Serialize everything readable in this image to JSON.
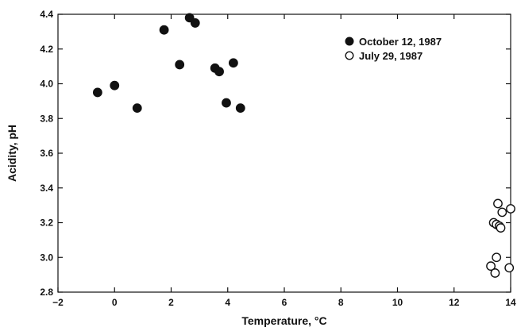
{
  "chart_data": {
    "type": "scatter",
    "xlabel": "Temperature, °C",
    "ylabel": "Acidity, pH",
    "xlim": [
      -2,
      14
    ],
    "ylim": [
      2.8,
      4.4
    ],
    "xticks": [
      "−2",
      "0",
      "2",
      "4",
      "6",
      "8",
      "10",
      "12",
      "14"
    ],
    "yticks": [
      "2.8",
      "3.0",
      "3.2",
      "3.4",
      "3.6",
      "3.8",
      "4.0",
      "4.2",
      "4.4"
    ],
    "grid": false,
    "legend_position": "top-right",
    "series": [
      {
        "name": "October 12, 1987",
        "marker": "filled-circle",
        "color": "#111111",
        "points": [
          {
            "x": -0.6,
            "y": 3.95
          },
          {
            "x": 0.0,
            "y": 3.99
          },
          {
            "x": 0.8,
            "y": 3.86
          },
          {
            "x": 1.75,
            "y": 4.31
          },
          {
            "x": 2.3,
            "y": 4.11
          },
          {
            "x": 2.65,
            "y": 4.38
          },
          {
            "x": 2.85,
            "y": 4.35
          },
          {
            "x": 3.55,
            "y": 4.09
          },
          {
            "x": 3.7,
            "y": 4.07
          },
          {
            "x": 3.95,
            "y": 3.89
          },
          {
            "x": 4.2,
            "y": 4.12
          },
          {
            "x": 4.45,
            "y": 3.86
          }
        ]
      },
      {
        "name": "July 29, 1987",
        "marker": "open-circle",
        "color": "#111111",
        "points": [
          {
            "x": 13.4,
            "y": 3.2
          },
          {
            "x": 13.5,
            "y": 3.19
          },
          {
            "x": 13.6,
            "y": 3.18
          },
          {
            "x": 13.65,
            "y": 3.17
          },
          {
            "x": 13.55,
            "y": 3.31
          },
          {
            "x": 13.7,
            "y": 3.26
          },
          {
            "x": 14.0,
            "y": 3.28
          },
          {
            "x": 13.3,
            "y": 2.95
          },
          {
            "x": 13.5,
            "y": 3.0
          },
          {
            "x": 13.45,
            "y": 2.91
          },
          {
            "x": 13.95,
            "y": 2.94
          }
        ]
      }
    ]
  }
}
